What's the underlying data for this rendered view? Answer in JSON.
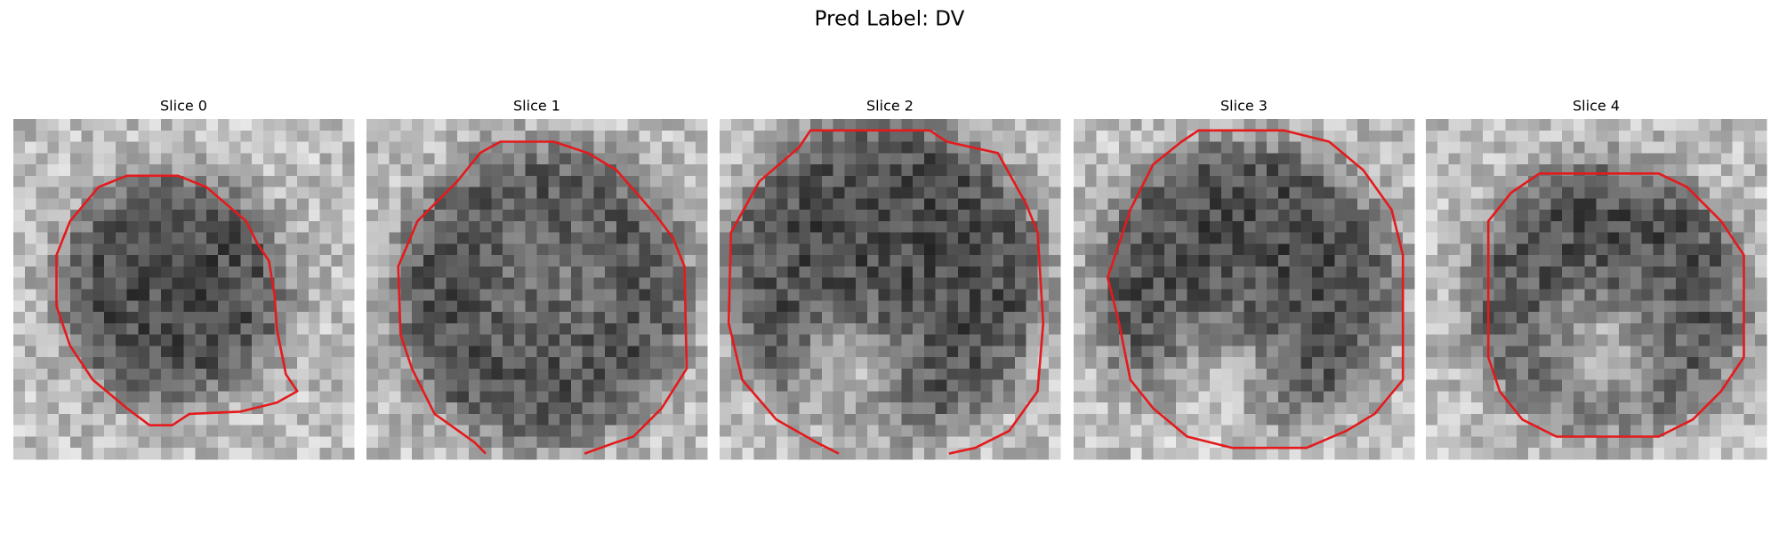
{
  "title": "Pred Label: DV",
  "panels": [
    {
      "title": "Slice 0"
    },
    {
      "title": "Slice 1"
    },
    {
      "title": "Slice 2"
    },
    {
      "title": "Slice 3"
    },
    {
      "title": "Slice 4"
    }
  ]
}
